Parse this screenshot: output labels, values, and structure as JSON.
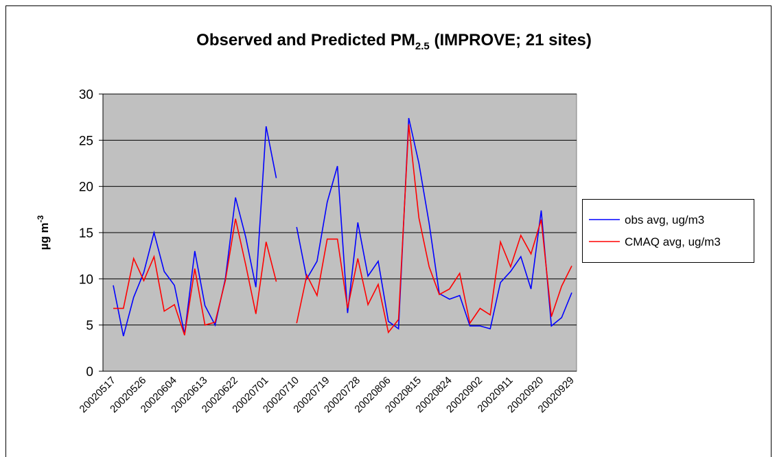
{
  "chart_data": {
    "type": "line",
    "title": "Observed and Predicted PM",
    "title_subscript": "2.5",
    "title_suffix": " (IMPROVE; 21 sites)",
    "y_label": "µg m",
    "y_label_superscript": "-3",
    "categories": [
      "20020517",
      null,
      null,
      "20020526",
      null,
      null,
      "20020604",
      null,
      null,
      "20020613",
      null,
      null,
      "20020622",
      null,
      null,
      "20020701",
      null,
      null,
      "20020710",
      null,
      null,
      "20020719",
      null,
      null,
      "20020728",
      null,
      null,
      "20020806",
      null,
      null,
      "20020815",
      null,
      null,
      "20020824",
      null,
      null,
      "20020902",
      null,
      null,
      "20020911",
      null,
      null,
      "20020920",
      null,
      null,
      "20020929"
    ],
    "series": [
      {
        "name": "obs avg, ug/m3",
        "color": "#0000ff",
        "values": [
          9.3,
          3.8,
          8.0,
          10.7,
          15.0,
          10.8,
          9.3,
          4.0,
          13.0,
          7.1,
          5.0,
          10.0,
          18.8,
          14.5,
          9.1,
          26.5,
          20.9,
          null,
          15.6,
          10.0,
          11.9,
          18.3,
          22.2,
          6.3,
          16.1,
          10.3,
          11.9,
          5.4,
          4.6,
          27.4,
          22.5,
          16.0,
          8.4,
          7.8,
          8.2,
          4.9,
          4.9,
          4.6,
          9.6,
          10.8,
          12.4,
          8.9,
          17.4,
          4.9,
          5.8,
          8.5
        ]
      },
      {
        "name": "CMAQ avg, ug/m3",
        "color": "#ff0000",
        "values": [
          6.8,
          6.8,
          12.2,
          9.8,
          12.4,
          6.5,
          7.2,
          3.9,
          11.1,
          5.0,
          5.3,
          9.8,
          16.5,
          11.5,
          6.2,
          14.0,
          9.7,
          null,
          5.2,
          10.4,
          8.2,
          14.3,
          14.3,
          6.8,
          12.2,
          7.2,
          9.4,
          4.2,
          5.6,
          26.7,
          16.6,
          11.3,
          8.3,
          8.9,
          10.6,
          5.2,
          6.8,
          6.1,
          14.0,
          11.3,
          14.7,
          12.7,
          16.4,
          5.9,
          9.2,
          11.4
        ]
      }
    ],
    "ylim": [
      0,
      30
    ],
    "yticks": [
      0,
      5,
      10,
      15,
      20,
      25,
      30
    ],
    "grid": true,
    "plot_background": "#c0c0c0",
    "legend": "right"
  }
}
